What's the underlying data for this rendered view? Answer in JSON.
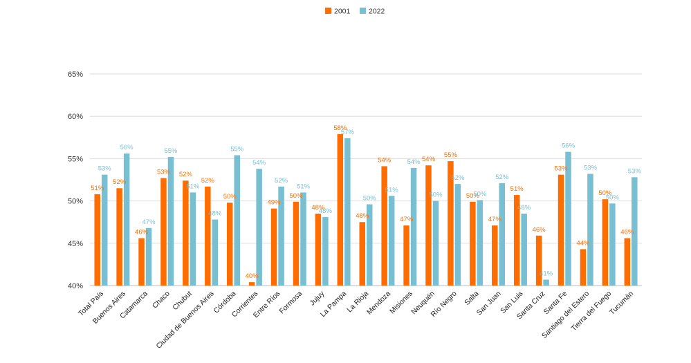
{
  "chart_data": {
    "type": "bar",
    "title": "",
    "xlabel": "",
    "ylabel": "",
    "ylim": [
      40,
      65
    ],
    "y_unit": "%",
    "y_ticks": [
      40,
      45,
      50,
      55,
      60,
      65
    ],
    "grid": true,
    "legend_position": "top-center",
    "categories": [
      "Total País",
      "Buenos Aires",
      "Catamarca",
      "Chaco",
      "Chubut",
      "Ciudad de Buenos Aires",
      "Córdoba",
      "Corrientes",
      "Entre Ríos",
      "Formosa",
      "Jujuy",
      "La Pampa",
      "La Rioja",
      "Mendoza",
      "Misiones",
      "Neuquén",
      "Río Negro",
      "Salta",
      "San Juan",
      "San Luis",
      "Santa Cruz",
      "Santa Fe",
      "Santiago del Estero",
      "Tierra del Fuego",
      "Tucumán"
    ],
    "series": [
      {
        "name": "2001",
        "color": "#ff6d01",
        "values": [
          50.8,
          51.5,
          45.6,
          52.7,
          52.4,
          51.7,
          49.8,
          40.4,
          49.1,
          49.9,
          48.5,
          57.9,
          47.5,
          54.1,
          47.1,
          54.2,
          54.7,
          49.9,
          47.1,
          50.7,
          45.9,
          53.1,
          44.3,
          50.2,
          45.6
        ],
        "labels": [
          "51%",
          "52%",
          "46%",
          "53%",
          "52%",
          "52%",
          "50%",
          "40%",
          "49%",
          "50%",
          "48%",
          "58%",
          "48%",
          "54%",
          "47%",
          "54%",
          "55%",
          "50%",
          "47%",
          "51%",
          "46%",
          "53%",
          "44%",
          "50%",
          "46%"
        ]
      },
      {
        "name": "2022",
        "color": "#78bfd2",
        "values": [
          53.1,
          55.6,
          46.8,
          55.2,
          51.0,
          47.8,
          55.4,
          53.8,
          51.7,
          51.0,
          48.1,
          57.4,
          49.6,
          50.6,
          53.9,
          50.0,
          52.0,
          50.1,
          52.1,
          48.5,
          40.7,
          55.8,
          53.2,
          49.7,
          52.8
        ],
        "labels": [
          "53%",
          "56%",
          "47%",
          "55%",
          "51%",
          "48%",
          "55%",
          "54%",
          "52%",
          "51%",
          "48%",
          "57%",
          "50%",
          "51%",
          "54%",
          "50%",
          "52%",
          "50%",
          "52%",
          "48%",
          "41%",
          "56%",
          "53%",
          "50%",
          "53%"
        ]
      }
    ]
  }
}
